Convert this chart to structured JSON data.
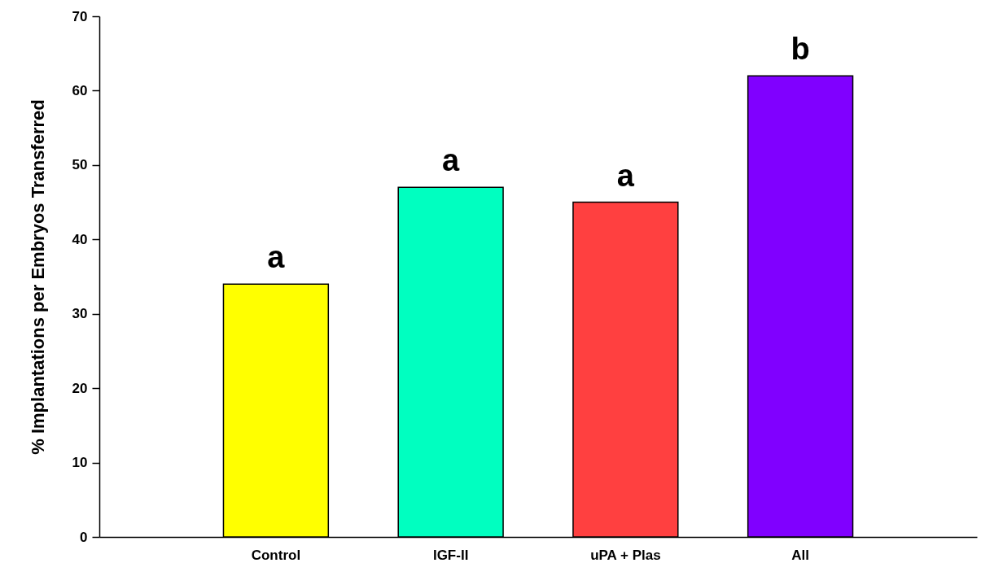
{
  "chart_data": {
    "type": "bar",
    "ylabel": "% Implantations per Embryos Transferred",
    "categories": [
      "Control",
      "IGF-II",
      "uPA + Plas",
      "All"
    ],
    "values": [
      34,
      47,
      45,
      62
    ],
    "colors": [
      "#ffff00",
      "#00ffc0",
      "#ff4040",
      "#8000ff"
    ],
    "ylim": [
      0,
      70
    ],
    "yticks": [
      0,
      10,
      20,
      30,
      40,
      50,
      60,
      70
    ],
    "grid": false,
    "annotations": [
      {
        "text": "a",
        "x": "Control",
        "y": 34
      },
      {
        "text": "a",
        "x": "IGF-II",
        "y": 47
      },
      {
        "text": "a",
        "x": "uPA + Plas",
        "y": 45
      },
      {
        "text": "b",
        "x": "All",
        "y": 62
      }
    ]
  }
}
